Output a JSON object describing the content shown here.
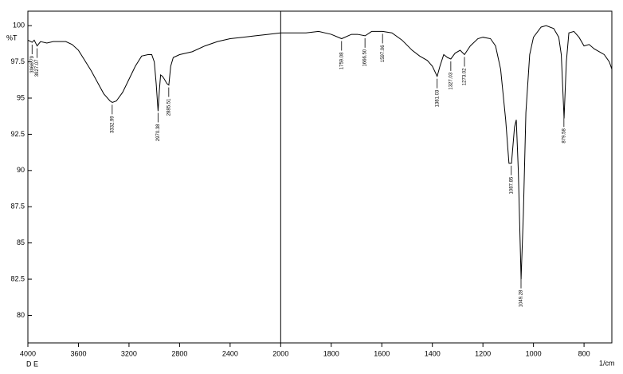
{
  "chart_data": {
    "type": "line",
    "y_label": "%T",
    "x_label": "1/cm",
    "footer": "D E",
    "xlim": [
      4000,
      690
    ],
    "xbreak": 2000,
    "xbreak_ratio": 2,
    "ylim": [
      78.1,
      101
    ],
    "xticks": [
      4000,
      3600,
      3200,
      2800,
      2400,
      2000,
      1800,
      1600,
      1400,
      1200,
      1000,
      800
    ],
    "yticks": [
      100,
      97.5,
      95,
      92.5,
      90,
      87.5,
      85,
      82.5,
      80
    ],
    "x": [
      4000,
      3966,
      3950,
      3927,
      3900,
      3850,
      3800,
      3700,
      3650,
      3600,
      3550,
      3500,
      3450,
      3400,
      3350,
      3332,
      3300,
      3250,
      3200,
      3150,
      3100,
      3050,
      3020,
      3000,
      2985,
      2970,
      2960,
      2950,
      2935,
      2920,
      2900,
      2885,
      2870,
      2850,
      2800,
      2700,
      2600,
      2500,
      2400,
      2300,
      2200,
      2100,
      2000,
      1900,
      1850,
      1800,
      1759,
      1720,
      1696,
      1666,
      1640,
      1597,
      1560,
      1520,
      1480,
      1450,
      1420,
      1400,
      1381,
      1370,
      1355,
      1340,
      1327,
      1310,
      1290,
      1273,
      1250,
      1220,
      1200,
      1170,
      1150,
      1130,
      1110,
      1097,
      1087,
      1075,
      1068,
      1060,
      1049,
      1040,
      1030,
      1015,
      1000,
      970,
      950,
      920,
      900,
      890,
      879,
      870,
      860,
      840,
      820,
      800,
      780,
      760,
      740,
      720,
      700,
      690
    ],
    "series": [
      {
        "color": "#000000",
        "values": [
          99.0,
          98.85,
          99.0,
          98.6,
          98.9,
          98.8,
          98.9,
          98.9,
          98.7,
          98.3,
          97.6,
          96.9,
          96.1,
          95.3,
          94.8,
          94.7,
          94.8,
          95.4,
          96.3,
          97.2,
          97.9,
          98.0,
          98.0,
          97.5,
          96.0,
          94.1,
          95.5,
          96.6,
          96.5,
          96.3,
          96.0,
          95.9,
          97.2,
          97.8,
          98.0,
          98.2,
          98.6,
          98.9,
          99.1,
          99.2,
          99.3,
          99.4,
          99.5,
          99.5,
          99.6,
          99.4,
          99.1,
          99.4,
          99.4,
          99.3,
          99.6,
          99.6,
          99.5,
          99.0,
          98.3,
          97.9,
          97.6,
          97.2,
          96.5,
          97.2,
          98.0,
          97.8,
          97.7,
          98.1,
          98.3,
          98.0,
          98.6,
          99.1,
          99.2,
          99.1,
          98.6,
          97.0,
          93.5,
          90.5,
          90.5,
          93.0,
          93.5,
          90.0,
          82.5,
          87.0,
          94.0,
          98.0,
          99.2,
          99.9,
          100.0,
          99.8,
          99.2,
          98.0,
          93.6,
          97.5,
          99.5,
          99.6,
          99.2,
          98.6,
          98.7,
          98.4,
          98.2,
          98.0,
          97.5,
          97.0
        ]
      }
    ],
    "peaks": [
      3966.79,
      3927.07,
      3332.99,
      2970.38,
      2885.51,
      1759.08,
      {
        "value": 1666.5,
        "label": "1666.50"
      },
      1597.06,
      1381.03,
      1327.03,
      1273.02,
      1087.85,
      1049.28,
      879.58
    ]
  }
}
